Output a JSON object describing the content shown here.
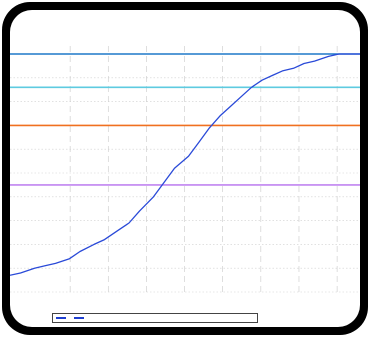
{
  "window": {
    "title": ""
  },
  "chart_data": {
    "type": "line",
    "title": "",
    "subtitle": "",
    "xlabel": "",
    "ylabel": "",
    "xlim": [
      0,
      100
    ],
    "ylim": [
      0,
      100
    ],
    "grid": true,
    "legend_position": "bottom-left",
    "x_ticks": [
      "",
      "",
      "",
      "",
      "",
      "",
      "",
      "",
      "",
      "",
      "",
      "",
      ""
    ],
    "series": [
      {
        "color": "#2a4ad8",
        "x": [
          0,
          3,
          7,
          10,
          13,
          17,
          20,
          24,
          27,
          31,
          34,
          37,
          41,
          44,
          47,
          51,
          54,
          57,
          60,
          63,
          66,
          69,
          72,
          75,
          78,
          81,
          84,
          87,
          91,
          94,
          100
        ],
        "y": [
          7,
          8,
          10,
          11,
          12,
          14,
          17,
          20,
          22,
          26,
          29,
          34,
          40,
          46,
          52,
          57,
          63,
          69,
          74,
          78,
          82,
          86,
          89,
          91,
          93,
          94,
          96,
          97,
          99,
          100,
          100
        ]
      }
    ],
    "reference_lines": [
      {
        "y": 100,
        "color": "#1e78c8"
      },
      {
        "y": 86,
        "color": "#5ecbe0"
      },
      {
        "y": 70,
        "color": "#f07020"
      },
      {
        "y": 45,
        "color": "#c084f0"
      }
    ],
    "legend": [
      {
        "label": "",
        "color": "#1f3fd0"
      },
      {
        "label": "",
        "color": "#1f3fd0"
      }
    ]
  },
  "footer": {
    "left": "",
    "right": ""
  }
}
